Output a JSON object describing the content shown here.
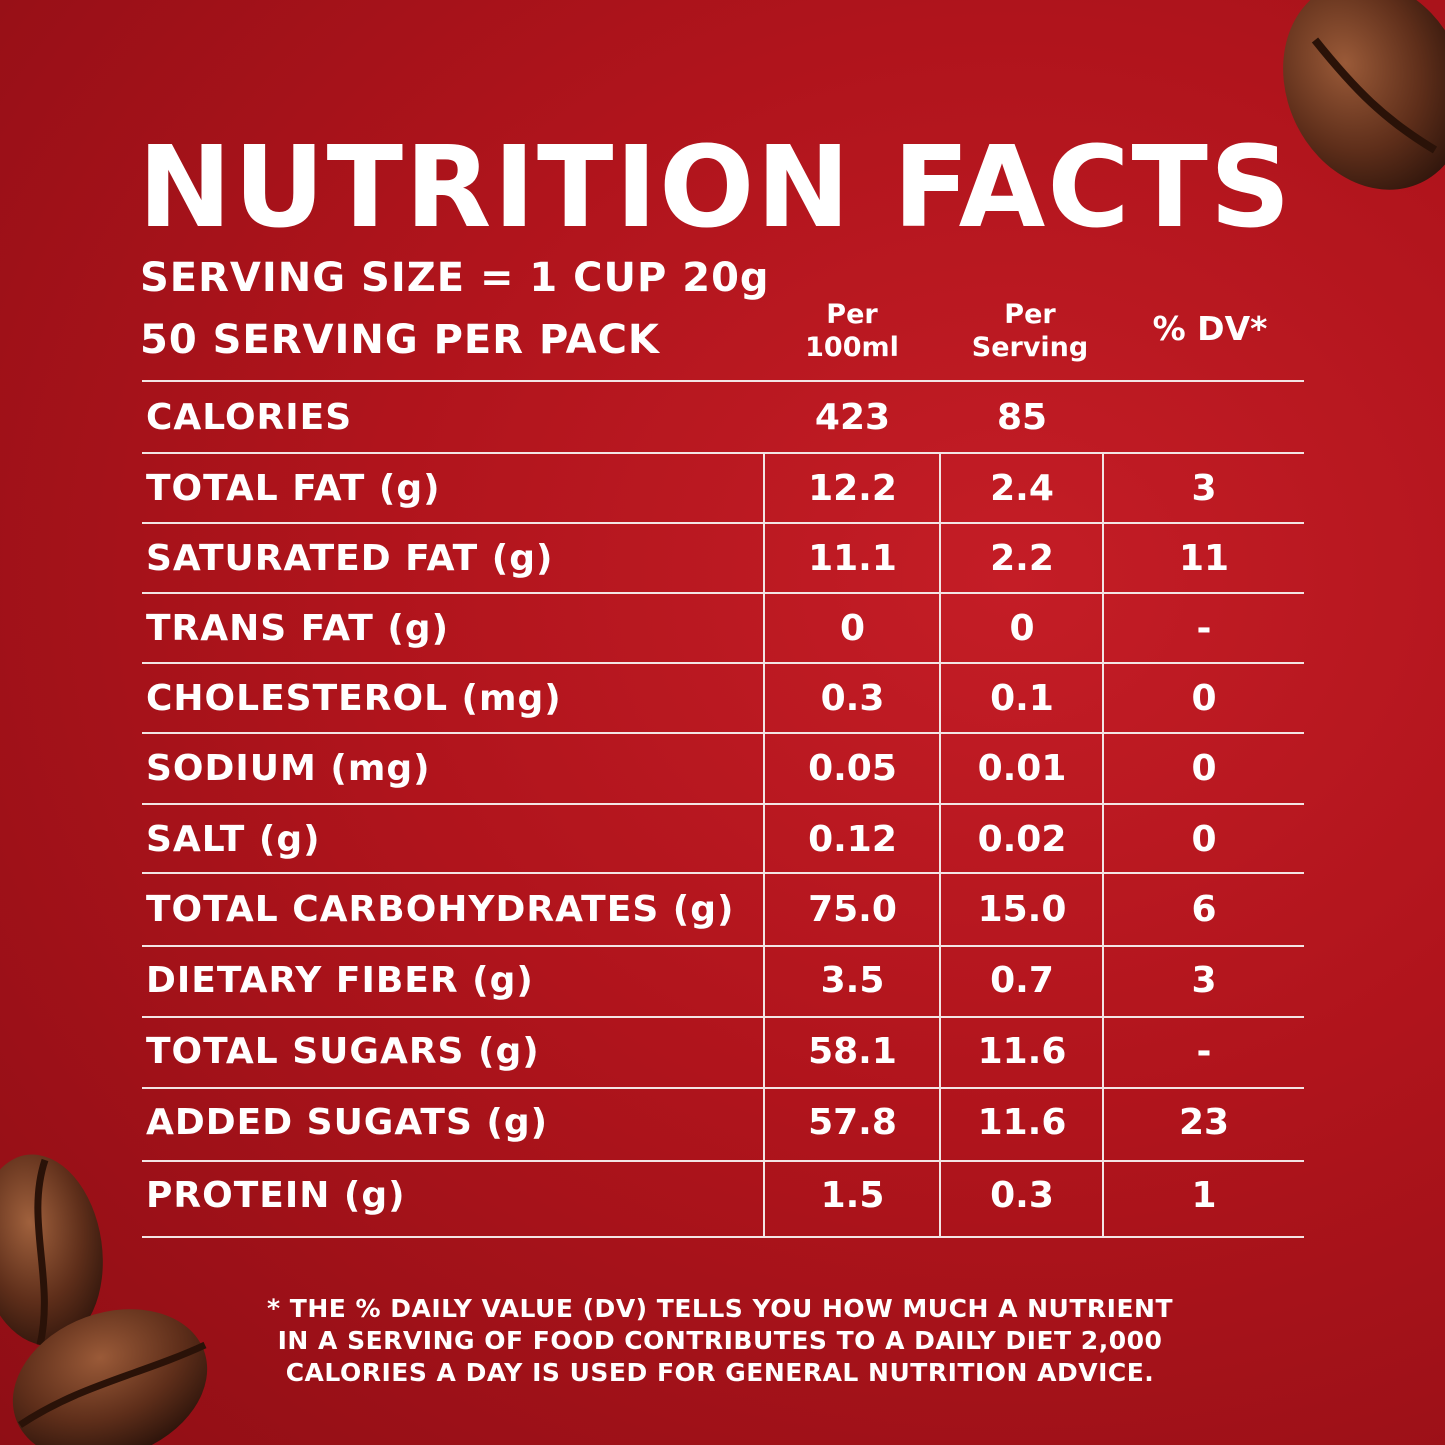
{
  "title": "NUTRITION FACTS",
  "serving": {
    "size": "SERVING SIZE = 1 CUP 20g",
    "per_pack": "50 SERVING PER PACK"
  },
  "columns": {
    "per_100ml_line1": "Per",
    "per_100ml_line2": "100ml",
    "per_serving_line1": "Per",
    "per_serving_line2": "Serving",
    "dv": "% DV*"
  },
  "rows": [
    {
      "name": "CALORIES",
      "per100": "423",
      "serving": "85",
      "dv": ""
    },
    {
      "name": "TOTAL FAT (g)",
      "per100": "12.2",
      "serving": "2.4",
      "dv": "3"
    },
    {
      "name": "SATURATED FAT (g)",
      "per100": "11.1",
      "serving": "2.2",
      "dv": "11"
    },
    {
      "name": "TRANS FAT (g)",
      "per100": "0",
      "serving": "0",
      "dv": "-"
    },
    {
      "name": "CHOLESTEROL (mg)",
      "per100": "0.3",
      "serving": "0.1",
      "dv": "0"
    },
    {
      "name": "SODIUM (mg)",
      "per100": "0.05",
      "serving": "0.01",
      "dv": "0"
    },
    {
      "name": "SALT (g)",
      "per100": "0.12",
      "serving": "0.02",
      "dv": "0"
    },
    {
      "name": "TOTAL CARBOHYDRATES (g)",
      "per100": "75.0",
      "serving": "15.0",
      "dv": "6"
    },
    {
      "name": "DIETARY FIBER (g)",
      "per100": "3.5",
      "serving": "0.7",
      "dv": "3"
    },
    {
      "name": "TOTAL SUGARS (g)",
      "per100": "58.1",
      "serving": "11.6",
      "dv": "-"
    },
    {
      "name": "ADDED SUGATS (g)",
      "per100": "57.8",
      "serving": "11.6",
      "dv": "23"
    },
    {
      "name": "PROTEIN (g)",
      "per100": "1.5",
      "serving": "0.3",
      "dv": "1"
    }
  ],
  "footnote": {
    "line1": "* THE % DAILY VALUE (DV) TELLS YOU HOW MUCH A NUTRIENT",
    "line2": "IN A SERVING OF FOOD CONTRIBUTES TO A DAILY DIET 2,000",
    "line3": "CALORIES A DAY IS USED FOR GENERAL NUTRITION ADVICE."
  },
  "colors": {
    "background": "#b0141c",
    "text": "#ffffff",
    "bean": "#5a2e1c"
  }
}
